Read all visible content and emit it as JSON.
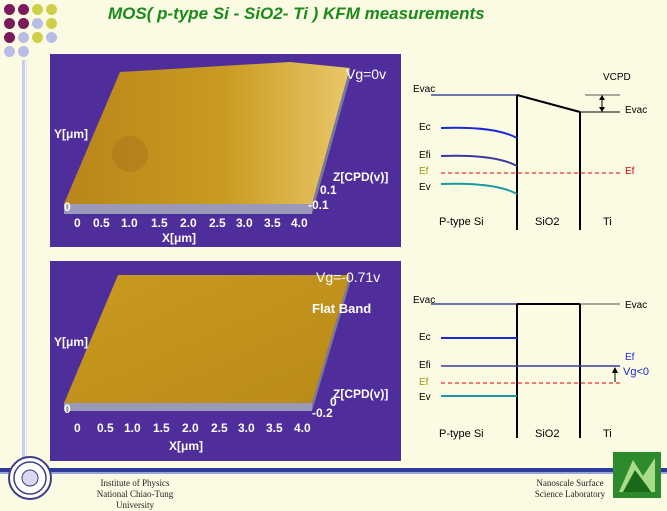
{
  "title": {
    "text": "MOS( p-type Si - SiO2- Ti ) KFM  measurements"
  },
  "panels": [
    {
      "gate_label": "Vg=0v",
      "y_label": "Y[μm]",
      "x_label": "X[μm]",
      "z_label": "Z[CPD(v)]",
      "z_ticks": [
        "0.1",
        "-0.1"
      ],
      "x_ticks": [
        "0",
        "0.5",
        "1.0",
        "1.5",
        "2.0",
        "2.5",
        "3.0",
        "3.5",
        "4.0"
      ],
      "origin": "0",
      "extra": "",
      "colors": {
        "surface": "#c99a1f",
        "bg": "#4f2e9c"
      }
    },
    {
      "gate_label": "Vg=-0.71v",
      "y_label": "Y[μm]",
      "x_label": "X[μm]",
      "z_label": "Z[CPD(v)]",
      "z_ticks": [
        "0",
        "-0.2"
      ],
      "x_ticks": [
        "0",
        "0.5",
        "1.0",
        "1.5",
        "2.0",
        "2.5",
        "3.0",
        "3.5",
        "4.0"
      ],
      "origin": "0",
      "extra": "Flat Band",
      "colors": {
        "surface": "#c99a1f",
        "bg": "#4f2e9c"
      }
    }
  ],
  "bands": [
    {
      "e_vac_left": "Evac",
      "e_vac_right": "Evac",
      "e_c": "Ec",
      "e_fi": "Efi",
      "e_f": "Ef",
      "e_v": "Ev",
      "e_f_right": "Ef",
      "cpd": "VCPD",
      "regions": [
        "P-type Si",
        "SiO2",
        "Ti"
      ]
    },
    {
      "e_vac_left": "Evac",
      "e_vac_right": "Evac",
      "e_c": "Ec",
      "e_fi": "Efi",
      "e_f": "Ef",
      "e_v": "Ev",
      "e_f_right": "Ef",
      "vg": "Vg<0",
      "regions": [
        "P-type Si",
        "SiO2",
        "Ti"
      ]
    }
  ],
  "footer": {
    "left_line1": "Institute of Physics",
    "left_line2": "National Chiao-Tung University",
    "right_line1": "Nanoscale Surface",
    "right_line2": "Science Laboratory"
  }
}
